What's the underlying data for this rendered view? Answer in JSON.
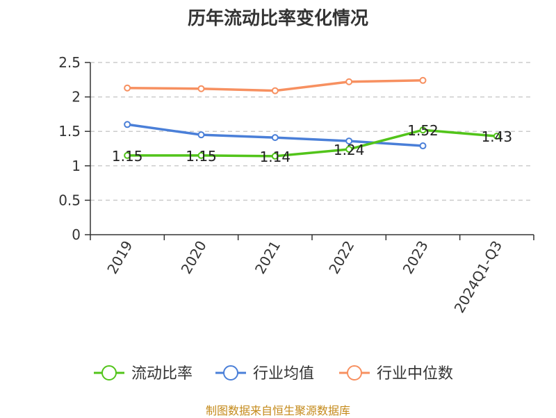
{
  "title": "历年流动比率变化情况",
  "source": "制图数据来自恒生聚源数据库",
  "colors": {
    "current_ratio": "#52c41a",
    "industry_avg": "#4a7fd8",
    "industry_median": "#f79060",
    "grid": "#cccccc",
    "axis": "#333333"
  },
  "chart_data": {
    "type": "line",
    "title": "历年流动比率变化情况",
    "categories": [
      "2019",
      "2020",
      "2021",
      "2022",
      "2023",
      "2024Q1-Q3"
    ],
    "ylim": [
      0,
      2.5
    ],
    "yticks": [
      "0",
      "0.5",
      "1",
      "1.5",
      "2",
      "2.5"
    ],
    "grid": "horizontal dashed",
    "legend_position": "bottom",
    "series": [
      {
        "name": "流动比率",
        "color": "#52c41a",
        "values": [
          1.15,
          1.15,
          1.14,
          1.24,
          1.52,
          1.43
        ],
        "labels": [
          "1.15",
          "1.15",
          "1.14",
          "1.24",
          "1.52",
          "1.43"
        ]
      },
      {
        "name": "行业均值",
        "color": "#4a7fd8",
        "values": [
          1.6,
          1.45,
          1.41,
          1.36,
          1.29,
          null
        ]
      },
      {
        "name": "行业中位数",
        "color": "#f79060",
        "values": [
          2.13,
          2.12,
          2.09,
          2.22,
          2.24,
          null
        ]
      }
    ]
  }
}
